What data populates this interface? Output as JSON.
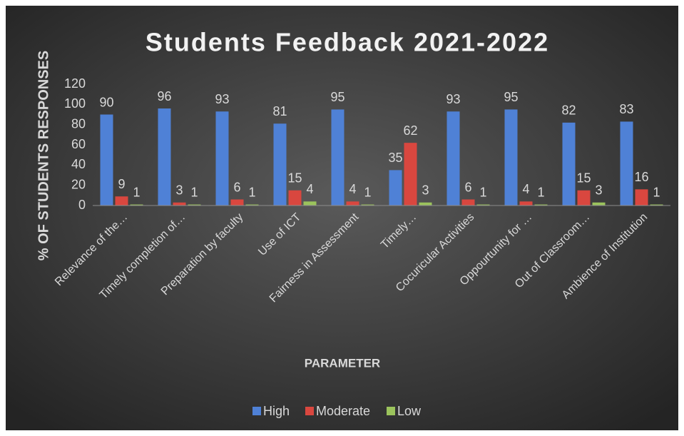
{
  "chart_data": {
    "type": "bar",
    "title": "Students Feedback 2021-2022",
    "x_label": "PARAMETER",
    "y_label": "% OF STUDENTS RESPONSES",
    "categories": [
      "Relevance of the…",
      "Timely completion of…",
      "Preparation by faculty",
      "Use of ICT",
      "Fairness in Assessment",
      "Timely…",
      "Cocuricular Activities",
      "Oppourtunity for …",
      "Out of Classroom…",
      "Ambience of Institution"
    ],
    "series": [
      {
        "name": "High",
        "color": "#4f81d6",
        "values": [
          90,
          96,
          93,
          81,
          95,
          35,
          93,
          95,
          82,
          83
        ]
      },
      {
        "name": "Moderate",
        "color": "#d9473f",
        "values": [
          9,
          3,
          6,
          15,
          4,
          62,
          6,
          4,
          15,
          16
        ]
      },
      {
        "name": "Low",
        "color": "#9bc35c",
        "values": [
          1,
          1,
          1,
          4,
          1,
          3,
          1,
          1,
          3,
          1
        ]
      }
    ],
    "ylim": [
      0,
      120
    ],
    "yticks": [
      0,
      20,
      40,
      60,
      80,
      100,
      120
    ],
    "grid": false,
    "legend": "bottom",
    "data_labels": true
  }
}
